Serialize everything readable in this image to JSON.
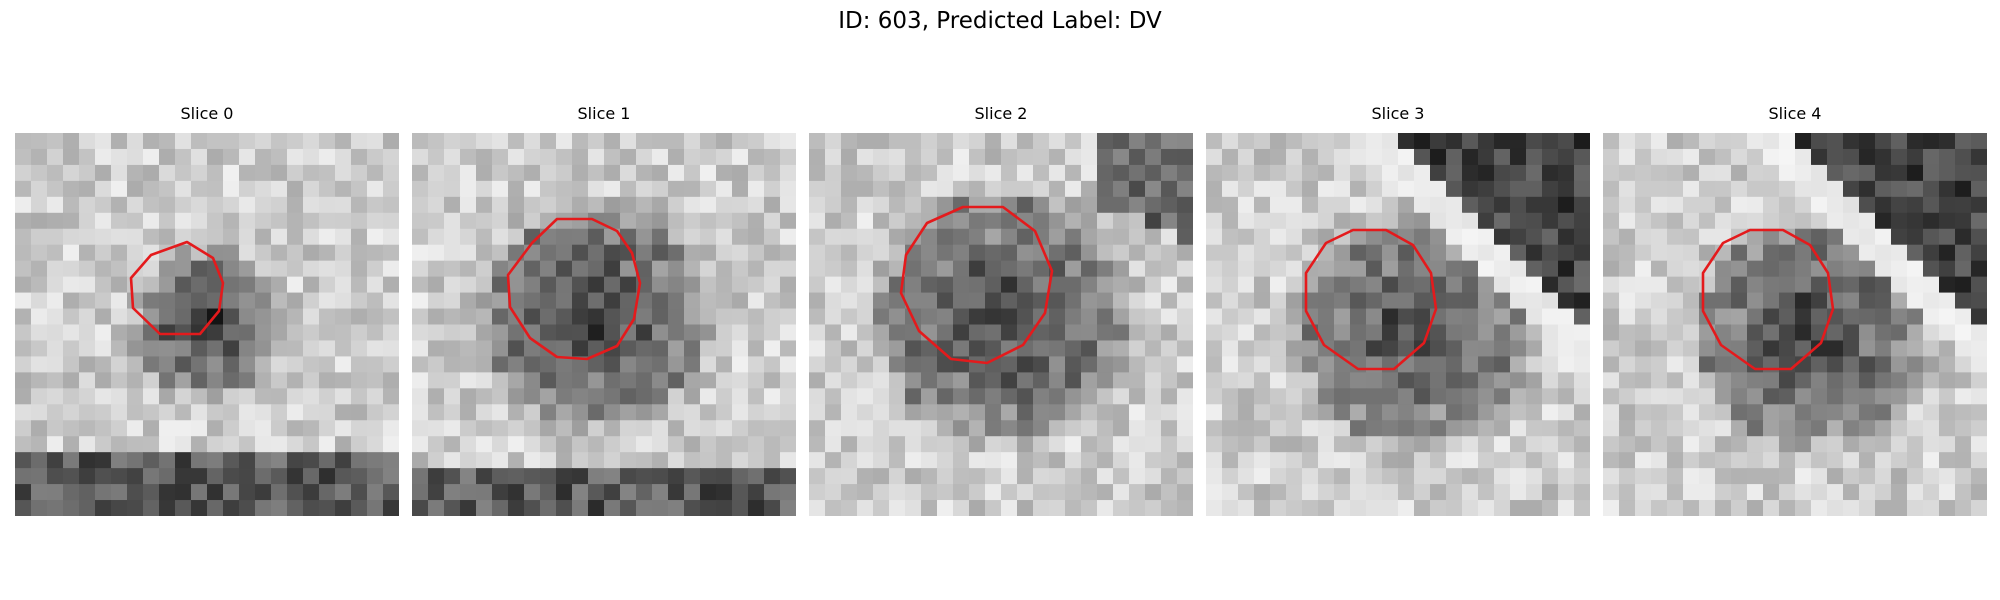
{
  "figure": {
    "title": "ID: 603, Predicted Label: DV"
  },
  "panels": [
    {
      "title": "Slice 0"
    },
    {
      "title": "Slice 1"
    },
    {
      "title": "Slice 2"
    },
    {
      "title": "Slice 3"
    },
    {
      "title": "Slice 4"
    }
  ],
  "colors": {
    "contour": "#e41a1c",
    "background": "#ffffff"
  }
}
